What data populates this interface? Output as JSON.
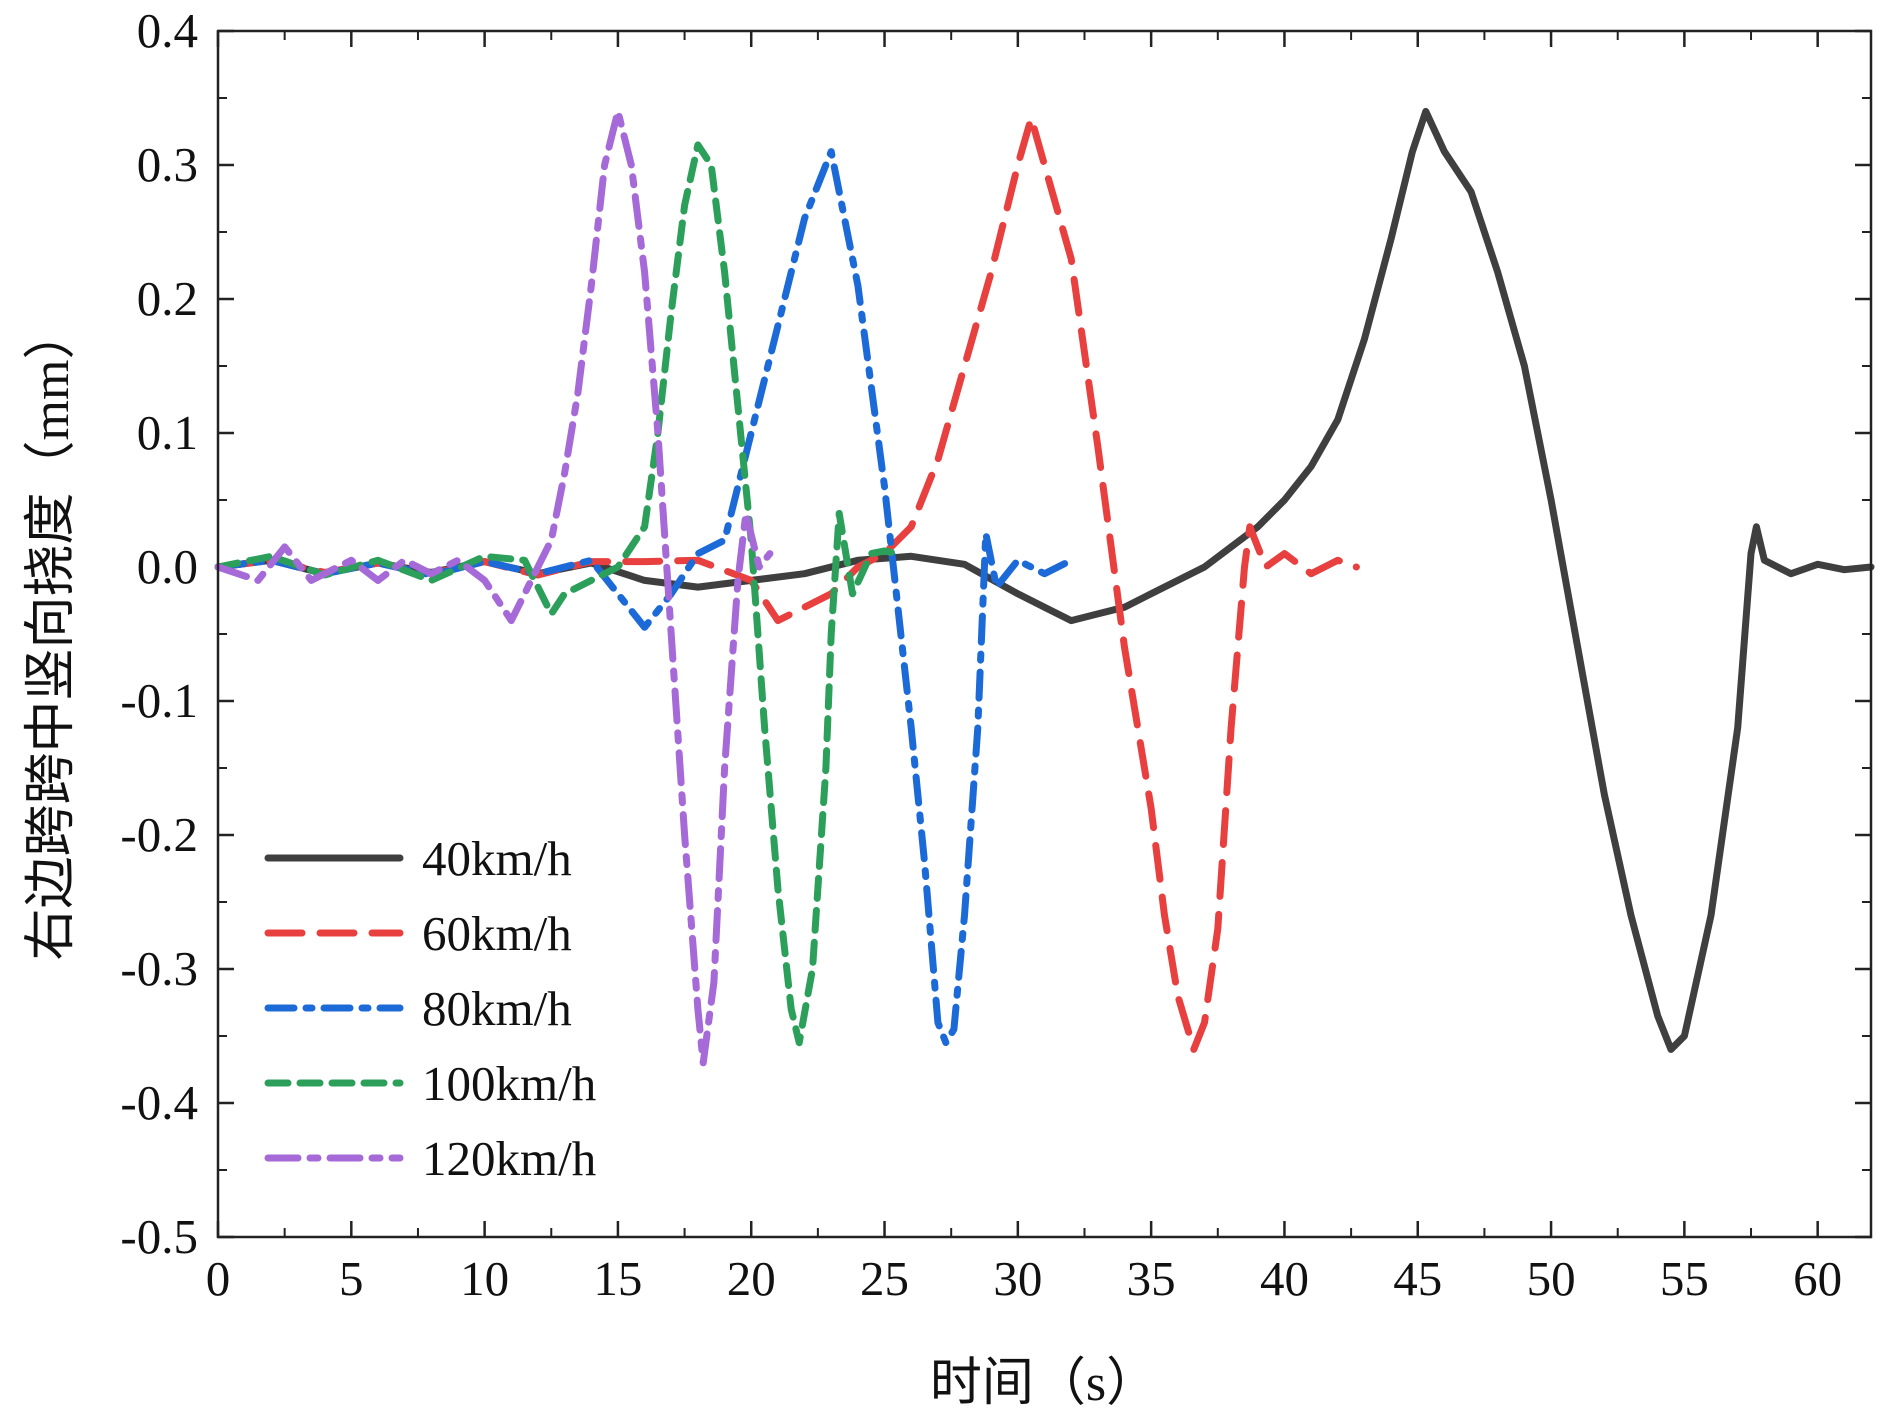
{
  "chart_data": {
    "type": "line",
    "title": "",
    "xlabel": "时间（s）",
    "ylabel": "右边跨跨中竖向挠度（mm）",
    "xlim": [
      0,
      62
    ],
    "ylim": [
      -0.5,
      0.4
    ],
    "xticks": [
      "0",
      "5",
      "10",
      "15",
      "20",
      "25",
      "30",
      "35",
      "40",
      "45",
      "50",
      "55",
      "60"
    ],
    "yticks": [
      "0.4",
      "0.3",
      "0.2",
      "0.1",
      "0.0",
      "-0.1",
      "-0.2",
      "-0.3",
      "-0.4",
      "-0.5"
    ],
    "legend_position": "lower-left",
    "series": [
      {
        "name": "40km/h",
        "color": "#3f3f3f",
        "dash": "solid",
        "points": [
          [
            0,
            0
          ],
          [
            2,
            0.005
          ],
          [
            4,
            -0.005
          ],
          [
            6,
            0.003
          ],
          [
            8,
            -0.004
          ],
          [
            10,
            0.004
          ],
          [
            12,
            -0.005
          ],
          [
            14,
            0.003
          ],
          [
            16,
            -0.01
          ],
          [
            18,
            -0.015
          ],
          [
            20,
            -0.01
          ],
          [
            22,
            -0.005
          ],
          [
            24,
            0.005
          ],
          [
            26,
            0.008
          ],
          [
            28,
            0.002
          ],
          [
            30,
            -0.02
          ],
          [
            31,
            -0.03
          ],
          [
            32,
            -0.04
          ],
          [
            33,
            -0.035
          ],
          [
            34,
            -0.03
          ],
          [
            35,
            -0.02
          ],
          [
            36,
            -0.01
          ],
          [
            37,
            0
          ],
          [
            38,
            0.015
          ],
          [
            39,
            0.03
          ],
          [
            40,
            0.05
          ],
          [
            41,
            0.075
          ],
          [
            42,
            0.11
          ],
          [
            43,
            0.17
          ],
          [
            44,
            0.245
          ],
          [
            44.8,
            0.31
          ],
          [
            45.3,
            0.34
          ],
          [
            46,
            0.31
          ],
          [
            47,
            0.28
          ],
          [
            48,
            0.22
          ],
          [
            49,
            0.15
          ],
          [
            50,
            0.05
          ],
          [
            51,
            -0.06
          ],
          [
            52,
            -0.17
          ],
          [
            53,
            -0.26
          ],
          [
            54,
            -0.335
          ],
          [
            54.5,
            -0.36
          ],
          [
            55,
            -0.35
          ],
          [
            56,
            -0.26
          ],
          [
            57,
            -0.12
          ],
          [
            57.5,
            0.01
          ],
          [
            57.7,
            0.03
          ],
          [
            58,
            0.005
          ],
          [
            59,
            -0.005
          ],
          [
            60,
            0.002
          ],
          [
            61,
            -0.002
          ],
          [
            62,
            0
          ]
        ]
      },
      {
        "name": "60km/h",
        "color": "#e8403f",
        "dash": "long-dash",
        "points": [
          [
            0,
            0
          ],
          [
            2,
            0.005
          ],
          [
            4,
            -0.004
          ],
          [
            6,
            0.003
          ],
          [
            8,
            -0.005
          ],
          [
            10,
            0.004
          ],
          [
            12,
            -0.006
          ],
          [
            14,
            0.004
          ],
          [
            16,
            0.004
          ],
          [
            18,
            0.005
          ],
          [
            20,
            -0.01
          ],
          [
            21,
            -0.04
          ],
          [
            22,
            -0.03
          ],
          [
            23,
            -0.02
          ],
          [
            24,
            0
          ],
          [
            25,
            0.01
          ],
          [
            26,
            0.03
          ],
          [
            27,
            0.08
          ],
          [
            28,
            0.15
          ],
          [
            29,
            0.22
          ],
          [
            30,
            0.3
          ],
          [
            30.5,
            0.335
          ],
          [
            31,
            0.3
          ],
          [
            32,
            0.23
          ],
          [
            33,
            0.09
          ],
          [
            34,
            -0.06
          ],
          [
            35,
            -0.18
          ],
          [
            35.5,
            -0.26
          ],
          [
            36,
            -0.32
          ],
          [
            36.6,
            -0.36
          ],
          [
            37,
            -0.34
          ],
          [
            37.5,
            -0.27
          ],
          [
            38,
            -0.12
          ],
          [
            38.5,
            0.0
          ],
          [
            38.7,
            0.03
          ],
          [
            39.3,
            0.0
          ],
          [
            40,
            0.01
          ],
          [
            41,
            -0.005
          ],
          [
            42,
            0.005
          ],
          [
            42.7,
            0.0
          ]
        ]
      },
      {
        "name": "80km/h",
        "color": "#1c6ad8",
        "dash": "dash-dot",
        "points": [
          [
            0,
            0
          ],
          [
            2,
            0.005
          ],
          [
            4,
            -0.005
          ],
          [
            6,
            0.003
          ],
          [
            8,
            -0.006
          ],
          [
            10,
            0.004
          ],
          [
            12,
            -0.005
          ],
          [
            14,
            0.005
          ],
          [
            15,
            -0.02
          ],
          [
            16,
            -0.045
          ],
          [
            17,
            -0.02
          ],
          [
            18,
            0.01
          ],
          [
            19,
            0.02
          ],
          [
            20,
            0.1
          ],
          [
            21,
            0.18
          ],
          [
            22,
            0.26
          ],
          [
            23,
            0.31
          ],
          [
            24,
            0.21
          ],
          [
            25,
            0.06
          ],
          [
            26,
            -0.12
          ],
          [
            26.5,
            -0.22
          ],
          [
            27,
            -0.34
          ],
          [
            27.3,
            -0.355
          ],
          [
            27.6,
            -0.345
          ],
          [
            28,
            -0.26
          ],
          [
            28.5,
            -0.12
          ],
          [
            28.8,
            0.025
          ],
          [
            29.2,
            -0.015
          ],
          [
            30,
            0.005
          ],
          [
            31,
            -0.005
          ],
          [
            32,
            0.005
          ]
        ]
      },
      {
        "name": "100km/h",
        "color": "#2ca05a",
        "dash": "dash",
        "points": [
          [
            0,
            0
          ],
          [
            2,
            0.008
          ],
          [
            4,
            -0.006
          ],
          [
            6,
            0.005
          ],
          [
            8,
            -0.01
          ],
          [
            10,
            0.008
          ],
          [
            11.5,
            0.005
          ],
          [
            12.5,
            -0.035
          ],
          [
            13,
            -0.02
          ],
          [
            14,
            -0.01
          ],
          [
            15,
            0.0
          ],
          [
            16,
            0.03
          ],
          [
            16.5,
            0.1
          ],
          [
            17,
            0.19
          ],
          [
            17.5,
            0.27
          ],
          [
            18,
            0.315
          ],
          [
            18.5,
            0.3
          ],
          [
            19,
            0.22
          ],
          [
            19.5,
            0.12
          ],
          [
            20,
            0.02
          ],
          [
            20.5,
            -0.12
          ],
          [
            21,
            -0.24
          ],
          [
            21.5,
            -0.33
          ],
          [
            21.8,
            -0.355
          ],
          [
            22.3,
            -0.3
          ],
          [
            22.8,
            -0.15
          ],
          [
            23,
            -0.05
          ],
          [
            23.3,
            0.04
          ],
          [
            23.8,
            -0.02
          ],
          [
            24.5,
            0.01
          ],
          [
            25,
            0.012
          ],
          [
            25.5,
            0.01
          ]
        ]
      },
      {
        "name": "120km/h",
        "color": "#a569d8",
        "dash": "dash-dot-long",
        "points": [
          [
            0,
            0
          ],
          [
            1.5,
            -0.01
          ],
          [
            2.5,
            0.015
          ],
          [
            3.5,
            -0.01
          ],
          [
            5,
            0.005
          ],
          [
            6,
            -0.01
          ],
          [
            7,
            0.005
          ],
          [
            8,
            -0.005
          ],
          [
            9,
            0.005
          ],
          [
            10,
            -0.01
          ],
          [
            11,
            -0.04
          ],
          [
            11.5,
            -0.02
          ],
          [
            12,
            0.0
          ],
          [
            12.5,
            0.02
          ],
          [
            13,
            0.07
          ],
          [
            13.5,
            0.13
          ],
          [
            14,
            0.21
          ],
          [
            14.5,
            0.3
          ],
          [
            15,
            0.34
          ],
          [
            15.5,
            0.3
          ],
          [
            16,
            0.22
          ],
          [
            16.5,
            0.1
          ],
          [
            17,
            -0.05
          ],
          [
            17.5,
            -0.2
          ],
          [
            18,
            -0.33
          ],
          [
            18.2,
            -0.37
          ],
          [
            18.6,
            -0.31
          ],
          [
            19,
            -0.15
          ],
          [
            19.5,
            -0.01
          ],
          [
            19.8,
            0.04
          ],
          [
            20.3,
            0.0
          ],
          [
            20.7,
            0.01
          ]
        ]
      }
    ]
  }
}
